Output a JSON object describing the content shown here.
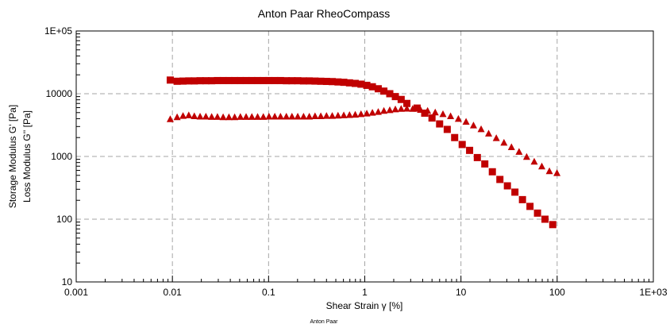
{
  "chart_data": {
    "type": "scatter",
    "title": "Anton Paar RheoCompass",
    "xlabel": "Shear Strain γ [%]",
    "ylabel": [
      "Storage Modulus G' [Pa]",
      "Loss Modulus G'' [Pa]"
    ],
    "xscale": "log",
    "yscale": "log",
    "xlim": [
      0.001,
      1000
    ],
    "ylim": [
      10,
      100000
    ],
    "xticks": [
      "0.001",
      "0.01",
      "0.1",
      "1",
      "10",
      "100",
      "1E+03"
    ],
    "yticks": [
      "10",
      "100",
      "1000",
      "10000",
      "1E+05"
    ],
    "grid": true,
    "footer": "Anton Paar",
    "colors": {
      "series": "#c00000"
    },
    "series": [
      {
        "marker": "square",
        "points": [
          [
            0.0095,
            16500
          ],
          [
            0.0112,
            15800
          ],
          [
            0.0129,
            15900
          ],
          [
            0.0148,
            16000
          ],
          [
            0.0169,
            16000
          ],
          [
            0.0194,
            16100
          ],
          [
            0.0223,
            16100
          ],
          [
            0.0256,
            16100
          ],
          [
            0.0294,
            16200
          ],
          [
            0.0337,
            16200
          ],
          [
            0.0387,
            16200
          ],
          [
            0.0444,
            16200
          ],
          [
            0.0509,
            16200
          ],
          [
            0.0584,
            16200
          ],
          [
            0.067,
            16200
          ],
          [
            0.0769,
            16200
          ],
          [
            0.0882,
            16200
          ],
          [
            0.101,
            16200
          ],
          [
            0.116,
            16200
          ],
          [
            0.133,
            16200
          ],
          [
            0.153,
            16100
          ],
          [
            0.175,
            16100
          ],
          [
            0.201,
            16100
          ],
          [
            0.231,
            16000
          ],
          [
            0.265,
            16000
          ],
          [
            0.304,
            15900
          ],
          [
            0.349,
            15800
          ],
          [
            0.4,
            15700
          ],
          [
            0.459,
            15600
          ],
          [
            0.527,
            15400
          ],
          [
            0.605,
            15200
          ],
          [
            0.694,
            14900
          ],
          [
            0.796,
            14600
          ],
          [
            0.914,
            14200
          ],
          [
            1.05,
            13600
          ],
          [
            1.2,
            12900
          ],
          [
            1.38,
            12000
          ],
          [
            1.58,
            11000
          ],
          [
            1.82,
            10000
          ],
          [
            2.08,
            9000
          ],
          [
            2.39,
            8100
          ],
          [
            2.74,
            7000
          ],
          [
            3.5,
            5900
          ],
          [
            4.2,
            4900
          ],
          [
            5.0,
            4100
          ],
          [
            6.0,
            3300
          ],
          [
            7.2,
            2700
          ],
          [
            8.6,
            2000
          ],
          [
            10.3,
            1550
          ],
          [
            12.3,
            1250
          ],
          [
            14.8,
            960
          ],
          [
            17.7,
            760
          ],
          [
            21.2,
            570
          ],
          [
            25.4,
            430
          ],
          [
            30.4,
            340
          ],
          [
            36.4,
            270
          ],
          [
            43.6,
            205
          ],
          [
            52.2,
            160
          ],
          [
            62.5,
            125
          ],
          [
            74.8,
            100
          ],
          [
            90,
            82
          ]
        ]
      },
      {
        "marker": "triangle",
        "points": [
          [
            0.0095,
            3900
          ],
          [
            0.0112,
            4200
          ],
          [
            0.0129,
            4400
          ],
          [
            0.0148,
            4500
          ],
          [
            0.0169,
            4350
          ],
          [
            0.0194,
            4300
          ],
          [
            0.0223,
            4300
          ],
          [
            0.0256,
            4250
          ],
          [
            0.0294,
            4250
          ],
          [
            0.0337,
            4200
          ],
          [
            0.0387,
            4200
          ],
          [
            0.0444,
            4200
          ],
          [
            0.0509,
            4250
          ],
          [
            0.0584,
            4250
          ],
          [
            0.067,
            4250
          ],
          [
            0.0769,
            4250
          ],
          [
            0.0882,
            4250
          ],
          [
            0.101,
            4300
          ],
          [
            0.116,
            4300
          ],
          [
            0.133,
            4300
          ],
          [
            0.153,
            4300
          ],
          [
            0.175,
            4300
          ],
          [
            0.201,
            4300
          ],
          [
            0.231,
            4300
          ],
          [
            0.265,
            4300
          ],
          [
            0.304,
            4350
          ],
          [
            0.349,
            4350
          ],
          [
            0.4,
            4400
          ],
          [
            0.459,
            4400
          ],
          [
            0.527,
            4450
          ],
          [
            0.605,
            4500
          ],
          [
            0.694,
            4550
          ],
          [
            0.796,
            4600
          ],
          [
            0.914,
            4700
          ],
          [
            1.05,
            4800
          ],
          [
            1.2,
            4950
          ],
          [
            1.38,
            5100
          ],
          [
            1.58,
            5300
          ],
          [
            1.82,
            5450
          ],
          [
            2.08,
            5600
          ],
          [
            2.39,
            5700
          ],
          [
            2.74,
            5750
          ],
          [
            3.15,
            5700
          ],
          [
            3.8,
            5500
          ],
          [
            4.5,
            5300
          ],
          [
            5.4,
            5000
          ],
          [
            6.5,
            4700
          ],
          [
            7.8,
            4350
          ],
          [
            9.4,
            3950
          ],
          [
            11.3,
            3550
          ],
          [
            13.5,
            3100
          ],
          [
            16.2,
            2700
          ],
          [
            19.4,
            2300
          ],
          [
            23.3,
            1950
          ],
          [
            28,
            1650
          ],
          [
            33.5,
            1400
          ],
          [
            40.2,
            1180
          ],
          [
            48.2,
            980
          ],
          [
            57.8,
            820
          ],
          [
            69.3,
            690
          ],
          [
            83.1,
            580
          ],
          [
            99.6,
            540
          ]
        ]
      }
    ]
  }
}
